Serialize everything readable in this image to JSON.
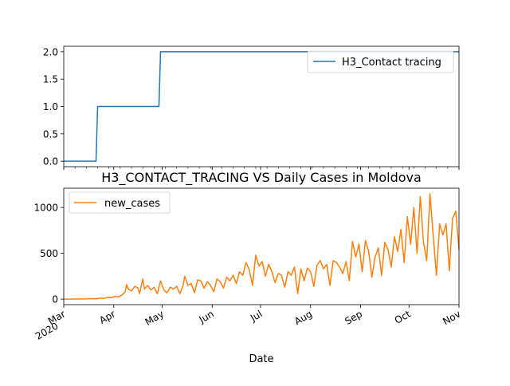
{
  "chart_data": [
    {
      "type": "line",
      "title": "",
      "xlabel": "",
      "ylabel": "",
      "ylim": [
        -0.1,
        2.1
      ],
      "x_range": [
        "2020-03-01",
        "2020-11-01"
      ],
      "yticks": [
        0.0,
        0.5,
        1.0,
        1.5,
        2.0
      ],
      "ytick_labels": [
        "0.0",
        "0.5",
        "1.0",
        "1.5",
        "2.0"
      ],
      "legend_position": "top-right",
      "series": [
        {
          "name": "H3_Contact tracing",
          "color": "#1f77b4",
          "points": [
            {
              "x": "2020-03-01",
              "y": 0
            },
            {
              "x": "2020-03-21",
              "y": 0
            },
            {
              "x": "2020-03-22",
              "y": 1
            },
            {
              "x": "2020-04-29",
              "y": 1
            },
            {
              "x": "2020-04-30",
              "y": 2
            },
            {
              "x": "2020-11-01",
              "y": 2
            }
          ]
        }
      ]
    },
    {
      "type": "line",
      "title": "H3_CONTACT_TRACING VS Daily Cases in Moldova",
      "xlabel": "Date",
      "ylabel": "",
      "ylim": [
        -60,
        1210
      ],
      "x_range": [
        "2020-03-01",
        "2020-11-01"
      ],
      "yticks": [
        0,
        500,
        1000
      ],
      "ytick_labels": [
        "0",
        "500",
        "1000"
      ],
      "xticks": [
        "2020-03-01",
        "2020-04-01",
        "2020-05-01",
        "2020-06-01",
        "2020-07-01",
        "2020-08-01",
        "2020-09-01",
        "2020-10-01",
        "2020-11-01"
      ],
      "xtick_labels": [
        "Mar\n2020",
        "Apr",
        "May",
        "Jun",
        "Jul",
        "Aug",
        "Sep",
        "Oct",
        "Nov"
      ],
      "legend_position": "top-left",
      "series": [
        {
          "name": "new_cases",
          "color": "#ff7f0e",
          "points": [
            {
              "x": "2020-03-01",
              "y": 0
            },
            {
              "x": "2020-03-07",
              "y": 1
            },
            {
              "x": "2020-03-14",
              "y": 2
            },
            {
              "x": "2020-03-18",
              "y": 5
            },
            {
              "x": "2020-03-21",
              "y": 3
            },
            {
              "x": "2020-03-24",
              "y": 12
            },
            {
              "x": "2020-03-26",
              "y": 8
            },
            {
              "x": "2020-03-28",
              "y": 20
            },
            {
              "x": "2020-03-30",
              "y": 15
            },
            {
              "x": "2020-04-02",
              "y": 30
            },
            {
              "x": "2020-04-04",
              "y": 25
            },
            {
              "x": "2020-04-06",
              "y": 45
            },
            {
              "x": "2020-04-08",
              "y": 75
            },
            {
              "x": "2020-04-09",
              "y": 160
            },
            {
              "x": "2020-04-10",
              "y": 110
            },
            {
              "x": "2020-04-12",
              "y": 90
            },
            {
              "x": "2020-04-14",
              "y": 140
            },
            {
              "x": "2020-04-16",
              "y": 120
            },
            {
              "x": "2020-04-17",
              "y": 60
            },
            {
              "x": "2020-04-19",
              "y": 220
            },
            {
              "x": "2020-04-20",
              "y": 110
            },
            {
              "x": "2020-04-22",
              "y": 150
            },
            {
              "x": "2020-04-24",
              "y": 100
            },
            {
              "x": "2020-04-26",
              "y": 130
            },
            {
              "x": "2020-04-28",
              "y": 60
            },
            {
              "x": "2020-04-30",
              "y": 200
            },
            {
              "x": "2020-05-02",
              "y": 100
            },
            {
              "x": "2020-05-04",
              "y": 70
            },
            {
              "x": "2020-05-06",
              "y": 130
            },
            {
              "x": "2020-05-08",
              "y": 110
            },
            {
              "x": "2020-05-10",
              "y": 140
            },
            {
              "x": "2020-05-12",
              "y": 60
            },
            {
              "x": "2020-05-14",
              "y": 150
            },
            {
              "x": "2020-05-15",
              "y": 250
            },
            {
              "x": "2020-05-17",
              "y": 150
            },
            {
              "x": "2020-05-19",
              "y": 170
            },
            {
              "x": "2020-05-21",
              "y": 70
            },
            {
              "x": "2020-05-23",
              "y": 210
            },
            {
              "x": "2020-05-25",
              "y": 200
            },
            {
              "x": "2020-05-27",
              "y": 120
            },
            {
              "x": "2020-05-29",
              "y": 190
            },
            {
              "x": "2020-05-31",
              "y": 150
            },
            {
              "x": "2020-06-02",
              "y": 80
            },
            {
              "x": "2020-06-04",
              "y": 220
            },
            {
              "x": "2020-06-06",
              "y": 190
            },
            {
              "x": "2020-06-08",
              "y": 120
            },
            {
              "x": "2020-06-10",
              "y": 240
            },
            {
              "x": "2020-06-12",
              "y": 200
            },
            {
              "x": "2020-06-14",
              "y": 260
            },
            {
              "x": "2020-06-16",
              "y": 170
            },
            {
              "x": "2020-06-18",
              "y": 300
            },
            {
              "x": "2020-06-20",
              "y": 260
            },
            {
              "x": "2020-06-22",
              "y": 400
            },
            {
              "x": "2020-06-24",
              "y": 320
            },
            {
              "x": "2020-06-26",
              "y": 150
            },
            {
              "x": "2020-06-28",
              "y": 480
            },
            {
              "x": "2020-06-30",
              "y": 360
            },
            {
              "x": "2020-07-02",
              "y": 410
            },
            {
              "x": "2020-07-04",
              "y": 250
            },
            {
              "x": "2020-07-06",
              "y": 380
            },
            {
              "x": "2020-07-08",
              "y": 300
            },
            {
              "x": "2020-07-10",
              "y": 180
            },
            {
              "x": "2020-07-12",
              "y": 280
            },
            {
              "x": "2020-07-14",
              "y": 260
            },
            {
              "x": "2020-07-16",
              "y": 130
            },
            {
              "x": "2020-07-18",
              "y": 300
            },
            {
              "x": "2020-07-20",
              "y": 260
            },
            {
              "x": "2020-07-22",
              "y": 350
            },
            {
              "x": "2020-07-24",
              "y": 60
            },
            {
              "x": "2020-07-26",
              "y": 330
            },
            {
              "x": "2020-07-28",
              "y": 200
            },
            {
              "x": "2020-07-30",
              "y": 340
            },
            {
              "x": "2020-08-01",
              "y": 300
            },
            {
              "x": "2020-08-03",
              "y": 140
            },
            {
              "x": "2020-08-05",
              "y": 370
            },
            {
              "x": "2020-08-07",
              "y": 420
            },
            {
              "x": "2020-08-09",
              "y": 330
            },
            {
              "x": "2020-08-11",
              "y": 380
            },
            {
              "x": "2020-08-13",
              "y": 150
            },
            {
              "x": "2020-08-15",
              "y": 420
            },
            {
              "x": "2020-08-17",
              "y": 400
            },
            {
              "x": "2020-08-19",
              "y": 350
            },
            {
              "x": "2020-08-21",
              "y": 280
            },
            {
              "x": "2020-08-23",
              "y": 410
            },
            {
              "x": "2020-08-25",
              "y": 200
            },
            {
              "x": "2020-08-27",
              "y": 630
            },
            {
              "x": "2020-08-29",
              "y": 460
            },
            {
              "x": "2020-08-31",
              "y": 600
            },
            {
              "x": "2020-09-02",
              "y": 300
            },
            {
              "x": "2020-09-04",
              "y": 640
            },
            {
              "x": "2020-09-06",
              "y": 520
            },
            {
              "x": "2020-09-08",
              "y": 240
            },
            {
              "x": "2020-09-10",
              "y": 460
            },
            {
              "x": "2020-09-12",
              "y": 560
            },
            {
              "x": "2020-09-14",
              "y": 260
            },
            {
              "x": "2020-09-16",
              "y": 620
            },
            {
              "x": "2020-09-18",
              "y": 540
            },
            {
              "x": "2020-09-20",
              "y": 350
            },
            {
              "x": "2020-09-22",
              "y": 680
            },
            {
              "x": "2020-09-24",
              "y": 520
            },
            {
              "x": "2020-09-26",
              "y": 760
            },
            {
              "x": "2020-09-28",
              "y": 400
            },
            {
              "x": "2020-09-30",
              "y": 900
            },
            {
              "x": "2020-10-02",
              "y": 600
            },
            {
              "x": "2020-10-04",
              "y": 1000
            },
            {
              "x": "2020-10-06",
              "y": 500
            },
            {
              "x": "2020-10-08",
              "y": 1120
            },
            {
              "x": "2020-10-10",
              "y": 620
            },
            {
              "x": "2020-10-12",
              "y": 420
            },
            {
              "x": "2020-10-14",
              "y": 1150
            },
            {
              "x": "2020-10-16",
              "y": 700
            },
            {
              "x": "2020-10-18",
              "y": 260
            },
            {
              "x": "2020-10-20",
              "y": 820
            },
            {
              "x": "2020-10-22",
              "y": 700
            },
            {
              "x": "2020-10-24",
              "y": 820
            },
            {
              "x": "2020-10-26",
              "y": 310
            },
            {
              "x": "2020-10-28",
              "y": 880
            },
            {
              "x": "2020-10-30",
              "y": 960
            },
            {
              "x": "2020-11-01",
              "y": 540
            }
          ]
        }
      ]
    }
  ]
}
